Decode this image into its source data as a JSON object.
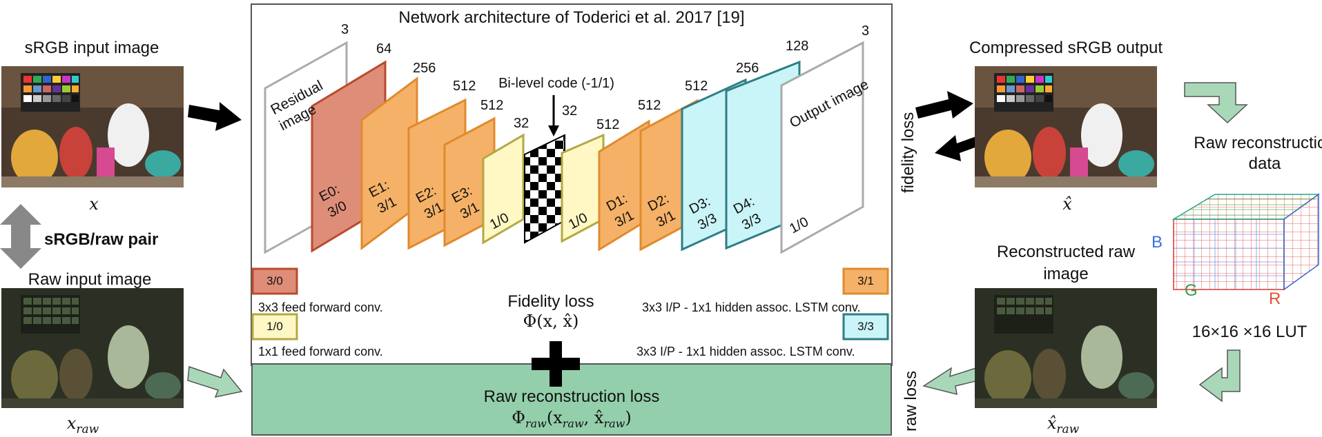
{
  "network": {
    "title": "Network architecture of Toderici et al. 2017 [19]",
    "residual_label_1": "Residual",
    "residual_label_2": "image",
    "output_label": "Output image",
    "bilevel": "Bi-level code (-1/1)",
    "layers": [
      {
        "id": "E0",
        "name": "E0:",
        "type": "3/0",
        "channels": "64"
      },
      {
        "id": "E1",
        "name": "E1:",
        "type": "3/1",
        "channels": "256"
      },
      {
        "id": "E2",
        "name": "E2:",
        "type": "3/1",
        "channels": "512"
      },
      {
        "id": "E3",
        "name": "E3:",
        "type": "3/1",
        "channels": "512"
      },
      {
        "id": "B1",
        "name": "",
        "type": "1/0",
        "channels": "32"
      },
      {
        "id": "B2",
        "name": "",
        "type": "1/0",
        "channels": "32"
      },
      {
        "id": "D1",
        "name": "D1:",
        "type": "3/1",
        "channels": "512"
      },
      {
        "id": "D2",
        "name": "D2:",
        "type": "3/1",
        "channels": "512"
      },
      {
        "id": "D3",
        "name": "D3:",
        "type": "3/3",
        "channels": "512"
      },
      {
        "id": "D4",
        "name": "D4:",
        "type": "3/3",
        "channels": "256"
      }
    ],
    "input_channels": "3",
    "output_channels": "3",
    "extra_channels": "128"
  },
  "legend": {
    "l30": {
      "code": "3/0",
      "text": "3x3 feed forward conv."
    },
    "l10": {
      "code": "1/0",
      "text": "1x1 feed forward conv."
    },
    "l31": {
      "code": "3/1",
      "text": "3x3 I/P - 1x1 hidden assoc. LSTM conv."
    },
    "l33": {
      "code": "3/3",
      "text": "3x3 I/P - 1x1 hidden assoc. LSTM conv."
    }
  },
  "losses": {
    "fidelity_title": "Fidelity loss",
    "fidelity_formula": "Φ(x, x̂)",
    "raw_title": "Raw reconstruction loss",
    "raw_formula_main": "Φ",
    "raw_formula_sub": "raw",
    "raw_formula_args": "(x",
    "raw_formula_args2": ", x̂",
    "raw_formula_close": ")",
    "fidelity_side": "fidelity loss",
    "raw_side": "raw loss"
  },
  "left": {
    "srgb_title": "sRGB input image",
    "srgb_var": "x",
    "pair_label": "sRGB/raw pair",
    "raw_title": "Raw input image",
    "raw_var": "x",
    "raw_sub": "raw"
  },
  "right": {
    "out_title": "Compressed sRGB output",
    "out_var": "x̂",
    "recon_data_1": "Raw reconstruction",
    "recon_data_2": "data",
    "recon_raw_1": "Reconstructed raw",
    "recon_raw_2": "image",
    "recon_var": "x̂",
    "recon_sub": "raw",
    "lut": "16×16 ×16  LUT",
    "axis_b": "B",
    "axis_g": "G",
    "axis_r": "R"
  },
  "colors": {
    "e0": "#de8e78",
    "e0_stroke": "#b94a2c",
    "orange": "#f5b167",
    "orange_stroke": "#e08a2c",
    "yellow": "#fff8c4",
    "yellow_stroke": "#b3a844",
    "cyan": "#c9f4f8",
    "cyan_stroke": "#2e7d86",
    "green": "#94cfac",
    "green_arrow": "#a9d8b9"
  }
}
